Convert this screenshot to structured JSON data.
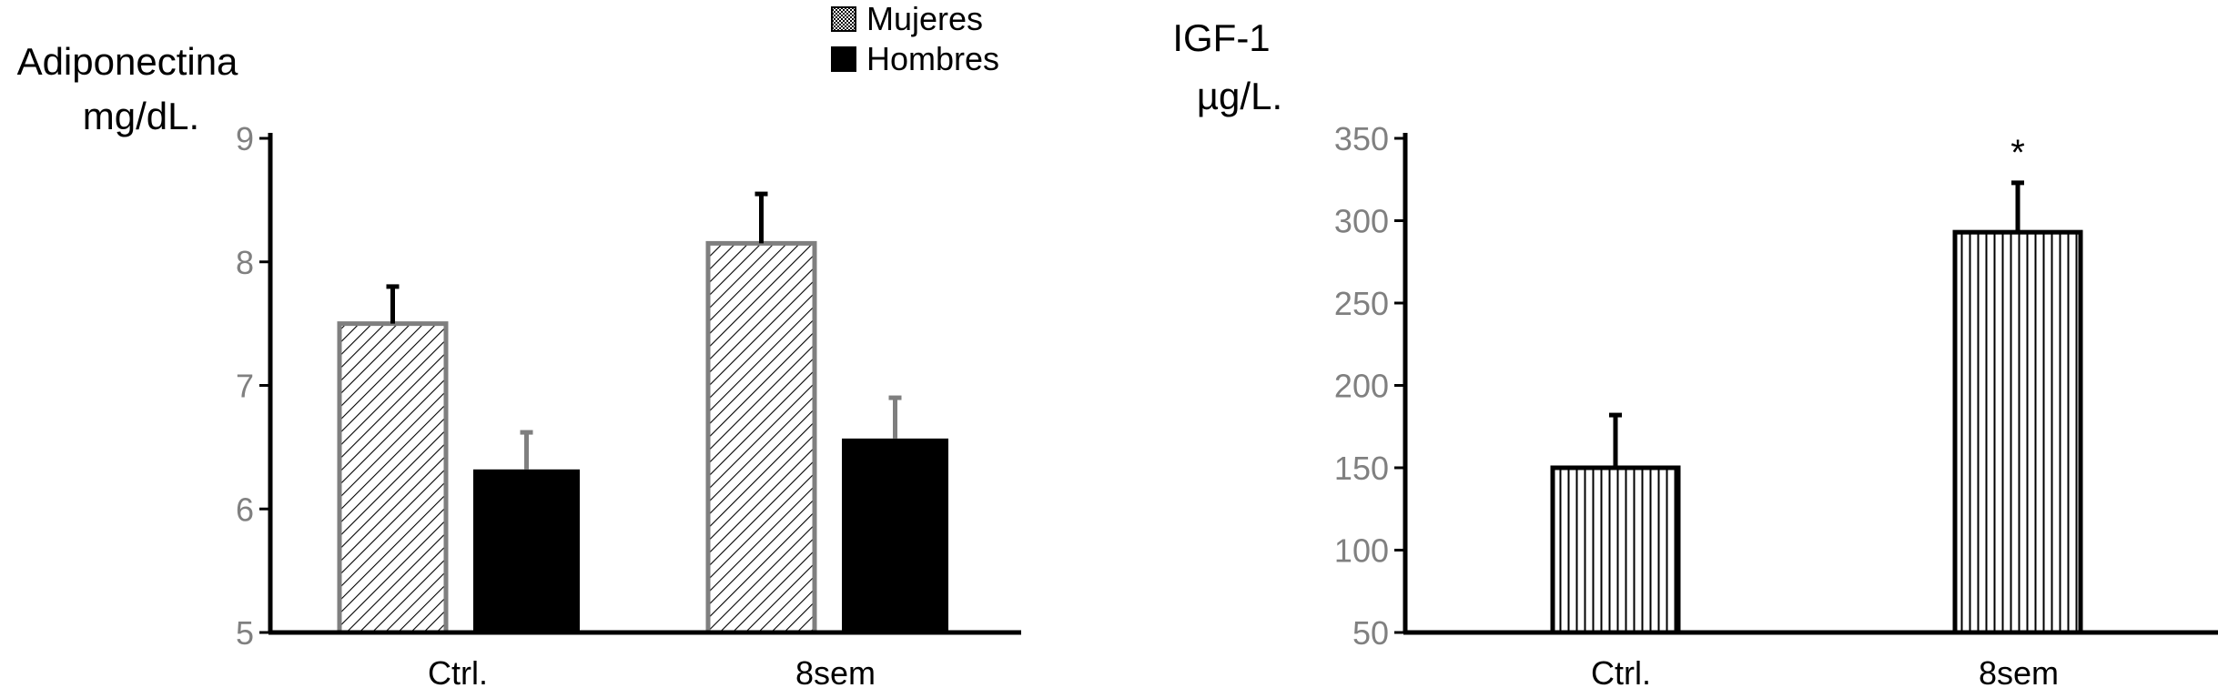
{
  "chart_data": [
    {
      "type": "bar",
      "ylabel": [
        "Adiponectina",
        "mg/dL."
      ],
      "categories": [
        "Ctrl.",
        "8sem"
      ],
      "ylim": [
        5,
        9
      ],
      "yticks": [
        5,
        6,
        7,
        8,
        9
      ],
      "legend": {
        "position": "top-center"
      },
      "series": [
        {
          "name": "Mujeres",
          "values": [
            7.5,
            8.15
          ],
          "errors": [
            0.3,
            0.4
          ],
          "color": "#7f7f7f",
          "pattern": "diagonal-hatch"
        },
        {
          "name": "Hombres",
          "values": [
            6.32,
            6.57
          ],
          "errors": [
            0.3,
            0.33
          ],
          "color": "#000000",
          "pattern": "solid"
        }
      ]
    },
    {
      "type": "bar",
      "ylabel": [
        "IGF-1",
        "µg/L."
      ],
      "categories": [
        "Ctrl.",
        "8sem"
      ],
      "ylim": [
        50,
        350
      ],
      "yticks": [
        50,
        100,
        150,
        200,
        250,
        300,
        350
      ],
      "series": [
        {
          "values": [
            150,
            293
          ],
          "errors": [
            32,
            30
          ],
          "color": "#000000",
          "pattern": "vertical-lines"
        }
      ],
      "annotations": [
        {
          "category": "8sem",
          "text": "*"
        }
      ]
    }
  ]
}
